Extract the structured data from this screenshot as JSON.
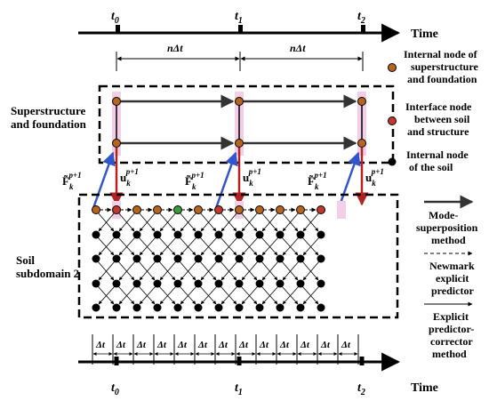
{
  "timeline": {
    "time_label": "Time",
    "ticks": [
      "t",
      "t",
      "t"
    ],
    "tick_subs": [
      "0",
      "1",
      "2"
    ],
    "interval_label": "nΔt",
    "small_interval_label": "Δt"
  },
  "blocks": {
    "superstructure": [
      "Superstructure",
      "and foundation"
    ],
    "soil": [
      "Soil",
      "subdomain 2"
    ]
  },
  "force_vector": {
    "base": "F̃",
    "sub": "k",
    "sup": "p+1"
  },
  "disp_vector": {
    "base": "u",
    "sub": "k",
    "sup": "p+1"
  },
  "legend": {
    "internal_super": [
      "Internal node of",
      "superstructure",
      "and foundation"
    ],
    "interface": [
      "Interface node",
      "between soil",
      "and structure"
    ],
    "internal_soil": [
      "Internal node",
      "of the soil"
    ],
    "mode_superposition": [
      "Mode-",
      "superposition",
      "method"
    ],
    "newmark": [
      "Newmark",
      "explicit",
      "predictor"
    ],
    "predictor_corrector": [
      "Explicit",
      "predictor-",
      "corrector",
      "method"
    ]
  },
  "colors": {
    "internal_super": "#b5651d",
    "interface": "#c0392b",
    "internal_soil": "#000000",
    "green_node": "#3a9b3a",
    "blue_arrow": "#3355cc",
    "red_arrow": "#b22222",
    "highlight": "#f2cfe6"
  }
}
